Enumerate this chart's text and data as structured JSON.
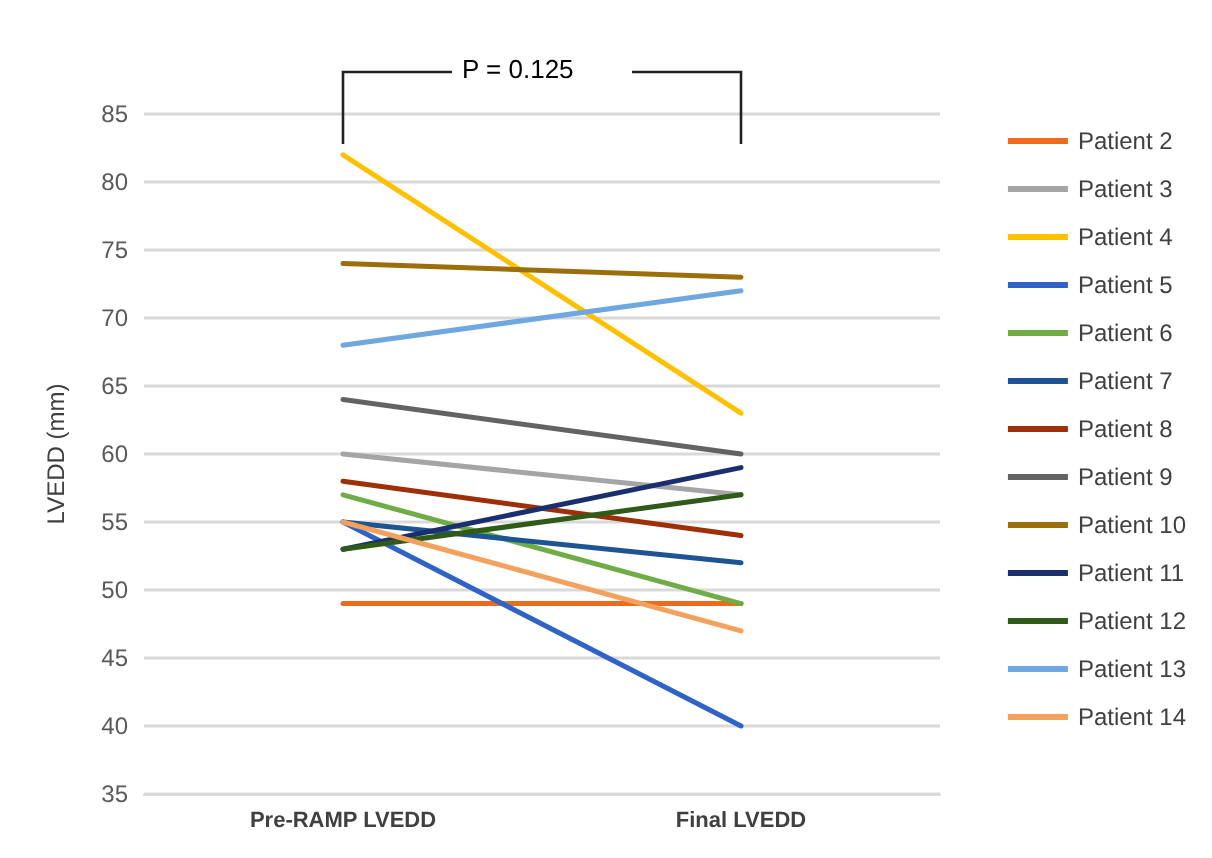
{
  "chart_data": {
    "type": "line",
    "ylabel": "LVEDD (mm)",
    "categories": [
      "Pre-RAMP LVEDD",
      "Final LVEDD"
    ],
    "ylim": [
      35,
      85
    ],
    "yticks": [
      35,
      40,
      45,
      50,
      55,
      60,
      65,
      70,
      75,
      80,
      85
    ],
    "grid": "y",
    "legend": "right",
    "marker": "none",
    "line_style": "solid",
    "annotations": [
      "P = 0.125"
    ],
    "series": [
      {
        "name": "Patient 2",
        "color": "#ed6b1f",
        "values": [
          49,
          49
        ]
      },
      {
        "name": "Patient 3",
        "color": "#a5a5a5",
        "values": [
          60,
          57
        ]
      },
      {
        "name": "Patient 4",
        "color": "#ffc000",
        "values": [
          82,
          63
        ]
      },
      {
        "name": "Patient 5",
        "color": "#2f63c8",
        "values": [
          55,
          40
        ]
      },
      {
        "name": "Patient 6",
        "color": "#70ad47",
        "values": [
          57,
          49
        ]
      },
      {
        "name": "Patient 7",
        "color": "#1f5494",
        "values": [
          55,
          52
        ]
      },
      {
        "name": "Patient 8",
        "color": "#9e3008",
        "values": [
          58,
          54
        ]
      },
      {
        "name": "Patient 9",
        "color": "#636363",
        "values": [
          64,
          60
        ]
      },
      {
        "name": "Patient 10",
        "color": "#9a6f0c",
        "values": [
          74,
          73
        ]
      },
      {
        "name": "Patient 11",
        "color": "#1b2f6e",
        "values": [
          53,
          59
        ]
      },
      {
        "name": "Patient 12",
        "color": "#2f5a17",
        "values": [
          53,
          57
        ]
      },
      {
        "name": "Patient 13",
        "color": "#6fa8e0",
        "values": [
          68,
          72
        ]
      },
      {
        "name": "Patient 14",
        "color": "#f4a15d",
        "values": [
          55,
          47
        ]
      }
    ]
  }
}
